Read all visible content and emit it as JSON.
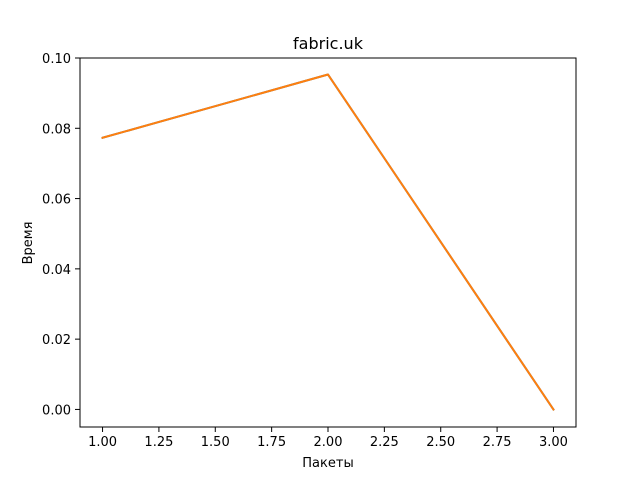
{
  "chart_data": {
    "type": "line",
    "title": "fabric.uk",
    "xlabel": "Пакеты",
    "ylabel": "Время",
    "xlim": [
      0.9,
      3.1
    ],
    "ylim": [
      -0.005,
      0.1
    ],
    "x_ticks": [
      "1.00",
      "1.25",
      "1.50",
      "1.75",
      "2.00",
      "2.25",
      "2.50",
      "2.75",
      "3.00"
    ],
    "y_ticks": [
      "0.00",
      "0.02",
      "0.04",
      "0.06",
      "0.08",
      "0.10"
    ],
    "grid": false,
    "series": [
      {
        "color": "#1f77b4",
        "x": [
          1,
          2,
          3
        ],
        "y": [
          0.0773,
          0.0953,
          0.0
        ]
      },
      {
        "color": "#ff7f0e",
        "x": [
          1,
          2,
          3
        ],
        "y": [
          0.0773,
          0.0953,
          0.0
        ]
      }
    ]
  }
}
